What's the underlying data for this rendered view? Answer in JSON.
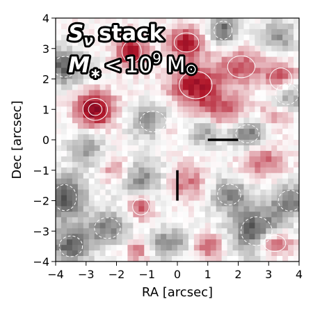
{
  "chart_data": {
    "type": "heatmap",
    "title": "",
    "xlabel": "RA [arcsec]",
    "ylabel": "Dec [arcsec]",
    "xlim": [
      -4,
      4
    ],
    "ylim": [
      -4,
      4
    ],
    "xticks": [
      "−4",
      "−3",
      "−2",
      "−1",
      "0",
      "1",
      "2",
      "3",
      "4"
    ],
    "yticks": [
      "−4",
      "−3",
      "−2",
      "−1",
      "0",
      "1",
      "2",
      "3",
      "4"
    ],
    "colormap": "diverging gray-white-red",
    "colors": {
      "negative": "#4d4d4d",
      "zero": "#ffffff",
      "positive": "#b2182b",
      "peak": "#67001f"
    },
    "annotation": {
      "line1_symbol": "S",
      "line1_sub": "ν",
      "line1_text": "stack",
      "line2_symbol": "M",
      "line2_sub": "∗",
      "line2_op": "<",
      "line2_base": "10",
      "line2_exp": "9",
      "line2_unit": "M",
      "line2_unit_sub": "⊙"
    },
    "markers": [
      {
        "name": "horizontal-bar",
        "x": [
          1.0,
          2.0
        ],
        "y": [
          0.0,
          0.0
        ],
        "color": "#000000"
      },
      {
        "name": "vertical-bar",
        "x": [
          0.0,
          0.0
        ],
        "y": [
          -1.0,
          -2.0
        ],
        "color": "#000000"
      }
    ],
    "positive_blobs": [
      {
        "x": -2.7,
        "y": 1.0,
        "rx": 0.45,
        "ry": 0.4,
        "amp": 1.0
      },
      {
        "x": -1.5,
        "y": 2.9,
        "rx": 0.35,
        "ry": 0.4,
        "amp": 0.85
      },
      {
        "x": 0.3,
        "y": 3.2,
        "rx": 0.45,
        "ry": 0.35,
        "amp": 0.8
      },
      {
        "x": 0.6,
        "y": 1.8,
        "rx": 0.6,
        "ry": 0.5,
        "amp": 0.8
      },
      {
        "x": 3.2,
        "y": -3.4,
        "rx": 0.4,
        "ry": 0.3,
        "amp": 0.8
      },
      {
        "x": 3.4,
        "y": 2.0,
        "rx": 0.4,
        "ry": 0.4,
        "amp": 0.7
      },
      {
        "x": 2.1,
        "y": 2.4,
        "rx": 0.5,
        "ry": 0.4,
        "amp": 0.55
      },
      {
        "x": 1.5,
        "y": 0.9,
        "rx": 0.6,
        "ry": 0.4,
        "amp": 0.5
      },
      {
        "x": -1.2,
        "y": -2.2,
        "rx": 0.3,
        "ry": 0.3,
        "amp": 0.6
      },
      {
        "x": -2.0,
        "y": -1.0,
        "rx": 0.35,
        "ry": 0.3,
        "amp": 0.45
      },
      {
        "x": 1.0,
        "y": -3.5,
        "rx": 0.4,
        "ry": 0.3,
        "amp": 0.5
      },
      {
        "x": 2.8,
        "y": -0.7,
        "rx": 0.5,
        "ry": 0.4,
        "amp": 0.5
      },
      {
        "x": 0.3,
        "y": -1.4,
        "rx": 0.5,
        "ry": 0.4,
        "amp": 0.45
      },
      {
        "x": -0.4,
        "y": 0.4,
        "rx": 0.3,
        "ry": 0.3,
        "amp": 0.35
      },
      {
        "x": -1.3,
        "y": -3.6,
        "rx": 0.3,
        "ry": 0.25,
        "amp": 0.5
      },
      {
        "x": 3.2,
        "y": 0.8,
        "rx": 0.4,
        "ry": 0.3,
        "amp": 0.4
      }
    ],
    "negative_blobs": [
      {
        "x": -3.7,
        "y": 2.4,
        "rx": 0.45,
        "ry": 0.4,
        "amp": 0.75
      },
      {
        "x": -3.7,
        "y": -1.9,
        "rx": 0.45,
        "ry": 0.5,
        "amp": 0.85
      },
      {
        "x": -3.5,
        "y": -3.5,
        "rx": 0.45,
        "ry": 0.4,
        "amp": 0.75
      },
      {
        "x": -0.8,
        "y": 0.6,
        "rx": 0.5,
        "ry": 0.4,
        "amp": 0.6
      },
      {
        "x": -1.2,
        "y": -1.3,
        "rx": 0.55,
        "ry": 0.45,
        "amp": 0.55
      },
      {
        "x": 2.3,
        "y": 0.2,
        "rx": 0.45,
        "ry": 0.35,
        "amp": 0.7
      },
      {
        "x": 1.7,
        "y": -1.8,
        "rx": 0.45,
        "ry": 0.4,
        "amp": 0.6
      },
      {
        "x": 2.6,
        "y": -3.0,
        "rx": 0.6,
        "ry": 0.55,
        "amp": 0.8
      },
      {
        "x": 3.7,
        "y": -2.0,
        "rx": 0.45,
        "ry": 0.4,
        "amp": 0.6
      },
      {
        "x": 1.5,
        "y": 3.6,
        "rx": 0.35,
        "ry": 0.35,
        "amp": 0.7
      },
      {
        "x": 3.6,
        "y": 1.5,
        "rx": 0.45,
        "ry": 0.4,
        "amp": 0.6
      },
      {
        "x": -2.3,
        "y": -2.9,
        "rx": 0.5,
        "ry": 0.4,
        "amp": 0.6
      },
      {
        "x": -0.3,
        "y": -3.4,
        "rx": 0.5,
        "ry": 0.35,
        "amp": 0.55
      },
      {
        "x": 0.9,
        "y": 0.3,
        "rx": 0.35,
        "ry": 0.35,
        "amp": 0.5
      },
      {
        "x": -3.0,
        "y": -0.3,
        "rx": 0.4,
        "ry": 0.4,
        "amp": 0.45
      },
      {
        "x": 3.3,
        "y": 3.4,
        "rx": 0.4,
        "ry": 0.4,
        "amp": 0.5
      }
    ],
    "grid": false,
    "legend": "none"
  }
}
